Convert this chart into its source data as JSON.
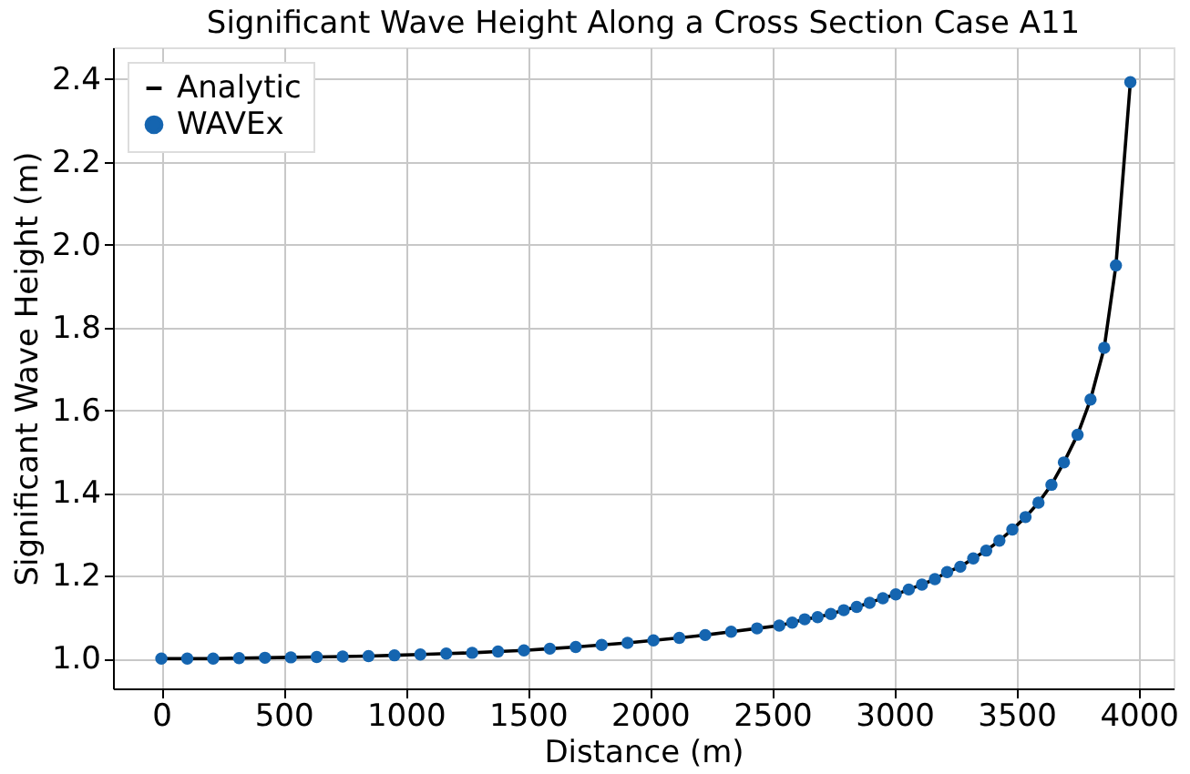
{
  "chart_data": {
    "type": "line",
    "title": "Significant Wave Height Along a Cross Section Case A11",
    "xlabel": "Distance (m)",
    "ylabel": "Significant Wave Height (m)",
    "x": [
      0,
      106,
      212,
      318,
      424,
      530,
      636,
      742,
      848,
      954,
      1060,
      1166,
      1272,
      1378,
      1484,
      1590,
      1696,
      1802,
      1908,
      2014,
      2120,
      2226,
      2332,
      2438,
      2529,
      2582,
      2633,
      2686,
      2740,
      2793,
      2846,
      2899,
      2953,
      3006,
      3059,
      3113,
      3166,
      3216,
      3270,
      3323,
      3376,
      3430,
      3483,
      3537,
      3590,
      3643,
      3694,
      3750,
      3803,
      3859,
      3907,
      3966
    ],
    "series": [
      {
        "name": "Analytic",
        "color": "#000000",
        "marker": "none",
        "line_style": "solid",
        "values": [
          1.0,
          1.0,
          1.0,
          1.001,
          1.002,
          1.003,
          1.004,
          1.005,
          1.006,
          1.008,
          1.01,
          1.012,
          1.014,
          1.017,
          1.02,
          1.024,
          1.028,
          1.033,
          1.038,
          1.044,
          1.05,
          1.057,
          1.065,
          1.073,
          1.08,
          1.087,
          1.095,
          1.1,
          1.108,
          1.117,
          1.125,
          1.135,
          1.146,
          1.155,
          1.167,
          1.179,
          1.192,
          1.209,
          1.222,
          1.242,
          1.261,
          1.285,
          1.312,
          1.342,
          1.377,
          1.42,
          1.474,
          1.541,
          1.626,
          1.751,
          1.95,
          2.393
        ]
      },
      {
        "name": "WAVEx",
        "type": "scatter",
        "color": "#1565b0",
        "marker": "circle",
        "values": [
          1.0,
          1.0,
          1.0,
          1.001,
          1.002,
          1.003,
          1.004,
          1.005,
          1.006,
          1.008,
          1.01,
          1.012,
          1.014,
          1.017,
          1.02,
          1.024,
          1.028,
          1.033,
          1.038,
          1.044,
          1.05,
          1.057,
          1.065,
          1.073,
          1.08,
          1.087,
          1.095,
          1.1,
          1.108,
          1.117,
          1.125,
          1.135,
          1.146,
          1.155,
          1.167,
          1.179,
          1.192,
          1.209,
          1.222,
          1.242,
          1.261,
          1.285,
          1.312,
          1.342,
          1.377,
          1.42,
          1.474,
          1.541,
          1.626,
          1.751,
          1.95,
          2.393
        ]
      }
    ],
    "xlim": [
      -198,
      4143
    ],
    "ylim": [
      0.928,
      2.477
    ],
    "xticks": [
      0,
      500,
      1000,
      1500,
      2000,
      2500,
      3000,
      3500,
      4000
    ],
    "yticks": [
      {
        "value": 1.0,
        "label": "1.0"
      },
      {
        "value": 1.2,
        "label": "1.2"
      },
      {
        "value": 1.4,
        "label": "1.4"
      },
      {
        "value": 1.6,
        "label": "1.6"
      },
      {
        "value": 1.8,
        "label": "1.8"
      },
      {
        "value": 2.0,
        "label": "2.0"
      },
      {
        "value": 2.2,
        "label": "2.2"
      },
      {
        "value": 2.4,
        "label": "2.4"
      }
    ],
    "grid": true,
    "legend": "top left"
  }
}
